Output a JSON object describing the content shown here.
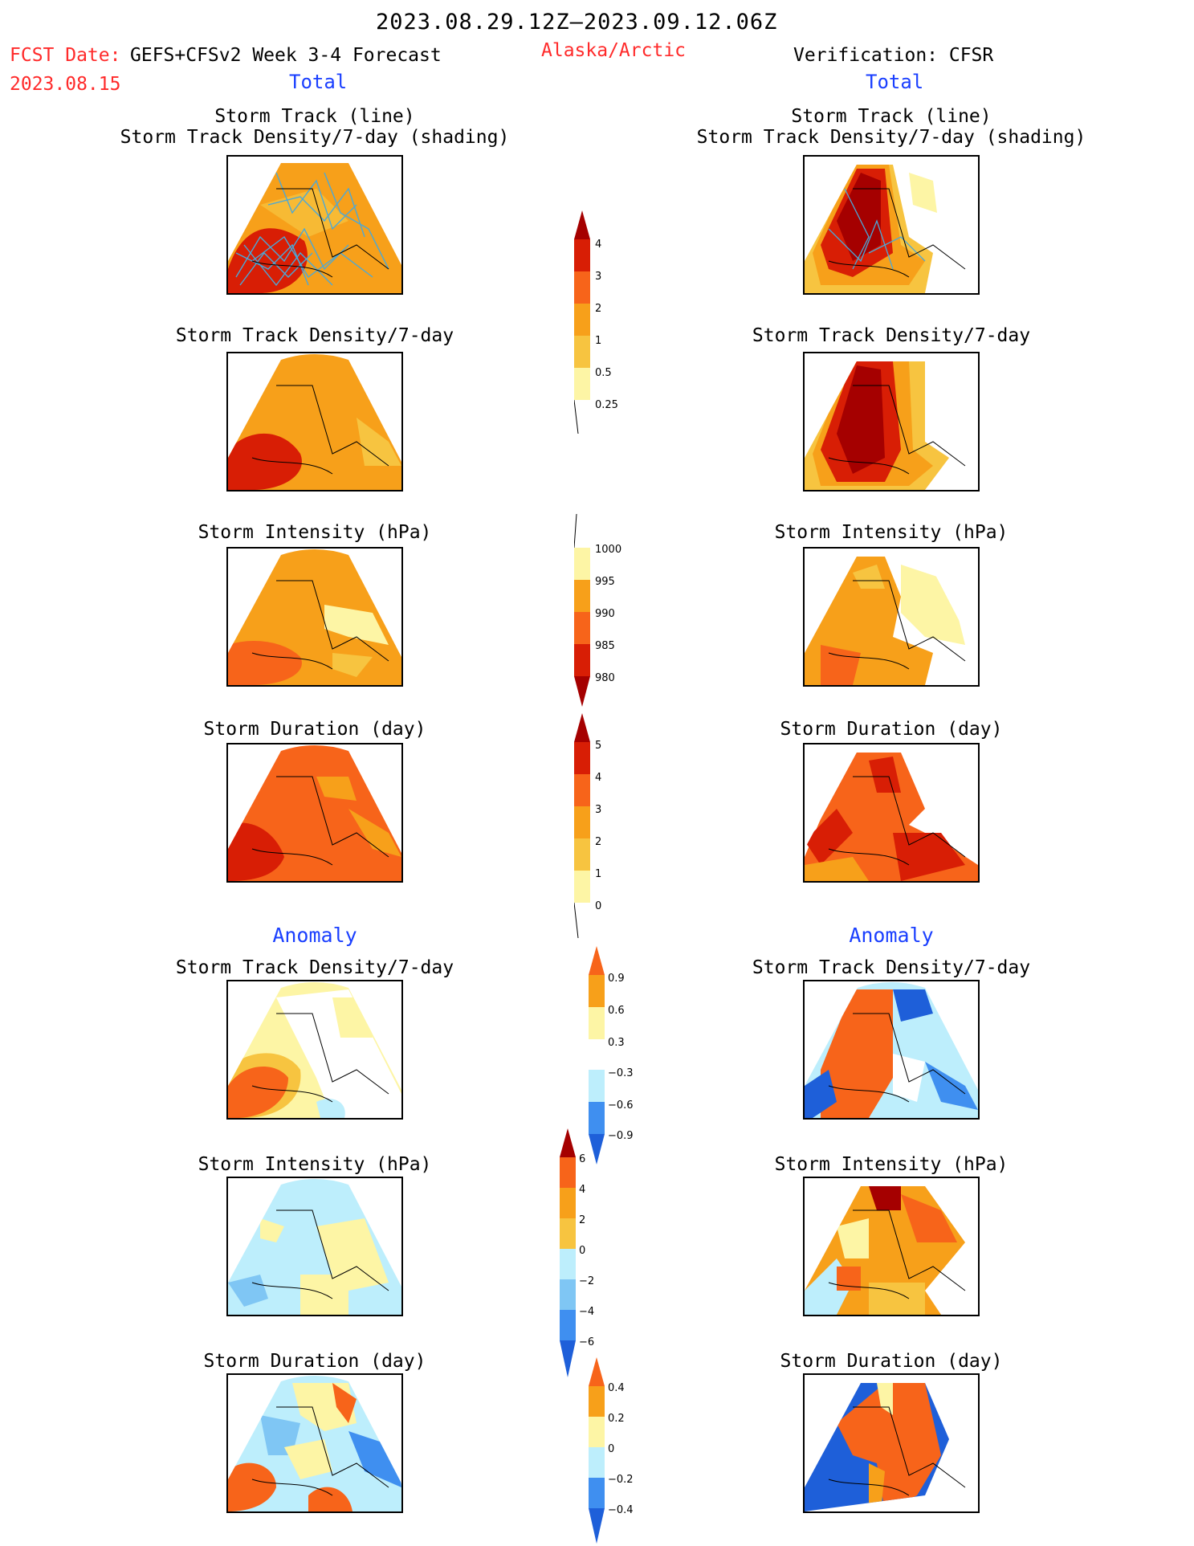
{
  "header": {
    "period": "2023.08.29.12Z–2023.09.12.06Z",
    "fcst_date_label": "FCST Date:",
    "fcst_model": "GEFS+CFSv2 Week 3-4 Forecast",
    "fcst_date_value": "2023.08.15",
    "region": "Alaska/Arctic",
    "verification": "Verification: CFSR"
  },
  "columns": {
    "left_total": "Total",
    "right_total": "Total",
    "left_anomaly": "Anomaly",
    "right_anomaly": "Anomaly"
  },
  "titles": {
    "track_line": "Storm Track (line)",
    "track_density_shading": "Storm Track Density/7-day (shading)",
    "track_density": "Storm Track Density/7-day",
    "intensity": "Storm Intensity (hPa)",
    "duration": "Storm Duration (day)"
  },
  "colorbars": {
    "density": [
      "4",
      "3",
      "2",
      "1",
      "0.5",
      "0.25"
    ],
    "intensity": [
      "1000",
      "995",
      "990",
      "985",
      "980"
    ],
    "duration": [
      "5",
      "4",
      "3",
      "2",
      "1",
      "0"
    ],
    "density_anom": [
      "0.9",
      "0.6",
      "0.3",
      "−0.3",
      "−0.6",
      "−0.9"
    ],
    "intensity_anom": [
      "6",
      "4",
      "2",
      "0",
      "−2",
      "−4",
      "−6"
    ],
    "duration_anom": [
      "0.4",
      "0.2",
      "0",
      "−0.2",
      "−0.4"
    ]
  },
  "colors": {
    "dark_red": "#a50000",
    "red": "#d81e05",
    "orange_red": "#f7641a",
    "orange": "#f7a01a",
    "light_orange": "#f7c440",
    "pale_yellow": "#fdf5a5",
    "pale_blue": "#bdeefc",
    "light_blue": "#7fc6f4",
    "mid_blue": "#3f8ff0",
    "blue": "#1e5fd9",
    "track_line": "#4aa8d8"
  }
}
